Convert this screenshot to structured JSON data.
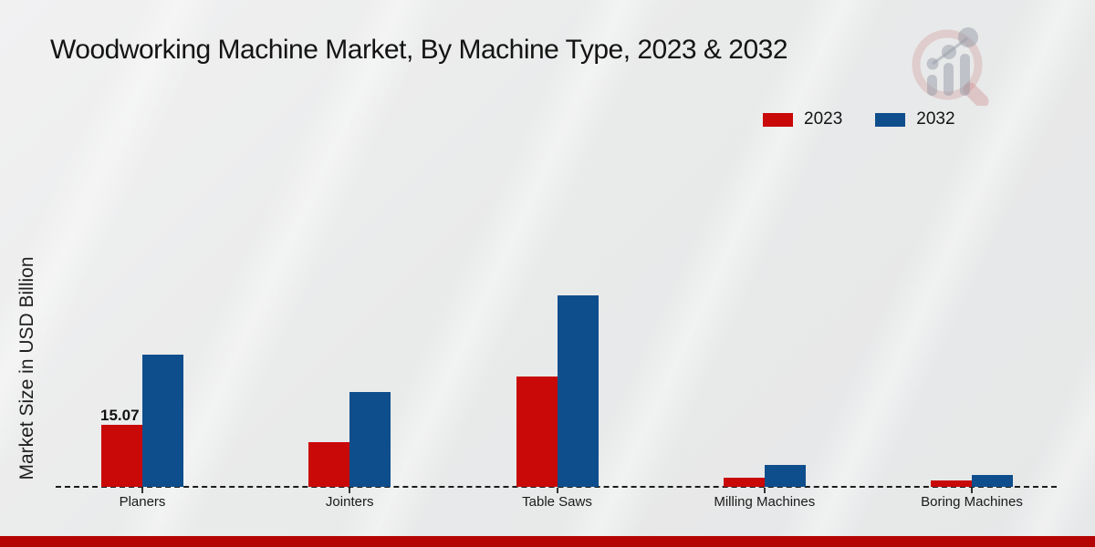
{
  "title": "Woodworking Machine Market, By Machine Type, 2023 & 2032",
  "ylabel": "Market Size in USD Billion",
  "legend": {
    "items": [
      {
        "label": "2023",
        "color": "#c90808"
      },
      {
        "label": "2032",
        "color": "#0f4e8c"
      }
    ]
  },
  "footer": {
    "color": "#b40404"
  },
  "chart_data": {
    "type": "bar",
    "title": "Woodworking Machine Market, By Machine Type, 2023 & 2032",
    "ylabel": "Market Size in USD Billion",
    "categories": [
      "Planers",
      "Jointers",
      "Table Saws",
      "Milling Machines",
      "Boring Machines"
    ],
    "series": [
      {
        "name": "2023",
        "color": "#c90808",
        "values": [
          15.07,
          10.9,
          26.8,
          2.3,
          1.6
        ]
      },
      {
        "name": "2032",
        "color": "#0f4e8c",
        "values": [
          32.1,
          23.0,
          46.5,
          5.4,
          2.9
        ]
      }
    ],
    "value_label": {
      "series": "2023",
      "category": "Planers",
      "text": "15.07"
    },
    "ylim": [
      0,
      50
    ],
    "grid": false,
    "baseline_style": "dashed",
    "legend_position": "top-right",
    "logo": "market-research-future-watermark"
  }
}
